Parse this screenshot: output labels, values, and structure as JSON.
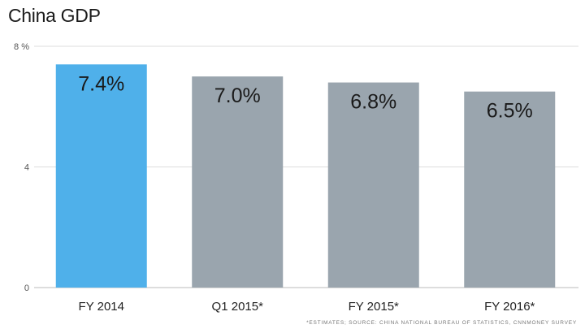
{
  "chart_data": {
    "type": "bar",
    "title": "China GDP",
    "categories": [
      "FY 2014",
      "Q1 2015*",
      "FY 2015*",
      "FY 2016*"
    ],
    "values": [
      7.4,
      7.0,
      6.8,
      6.5
    ],
    "value_labels": [
      "7.4%",
      "7.0%",
      "6.8%",
      "6.5%"
    ],
    "bar_colors": [
      "#4fb0ea",
      "#9aa5ae",
      "#9aa5ae",
      "#9aa5ae"
    ],
    "y_ticks": [
      0,
      4,
      8
    ],
    "y_tick_labels": [
      "0",
      "4",
      "8 %"
    ],
    "ylim": [
      0,
      8
    ],
    "xlabel": "",
    "ylabel": "",
    "grid": true,
    "legend": "none",
    "source_note": "*Estimates; source: China National Bureau of Statistics, CNNMoney Survey"
  }
}
